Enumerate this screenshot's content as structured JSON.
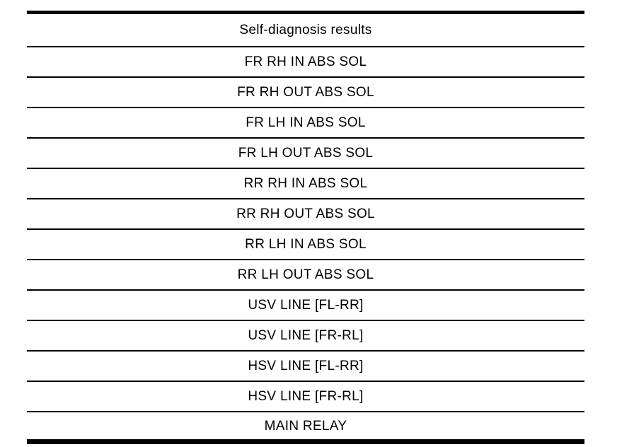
{
  "table": {
    "title": "Self-diagnosis results",
    "rows": [
      "FR RH IN ABS SOL",
      "FR RH OUT ABS SOL",
      "FR LH IN ABS SOL",
      "FR LH OUT ABS SOL",
      "RR RH IN ABS SOL",
      "RR RH OUT ABS SOL",
      "RR LH IN ABS SOL",
      "RR LH OUT ABS SOL",
      "USV LINE [FL-RR]",
      "USV LINE [FR-RL]",
      "HSV LINE [FL-RR]",
      "HSV LINE [FR-RL]",
      "MAIN RELAY"
    ],
    "colors": {
      "border": "#000000",
      "text": "#000000",
      "background": "#ffffff"
    }
  }
}
